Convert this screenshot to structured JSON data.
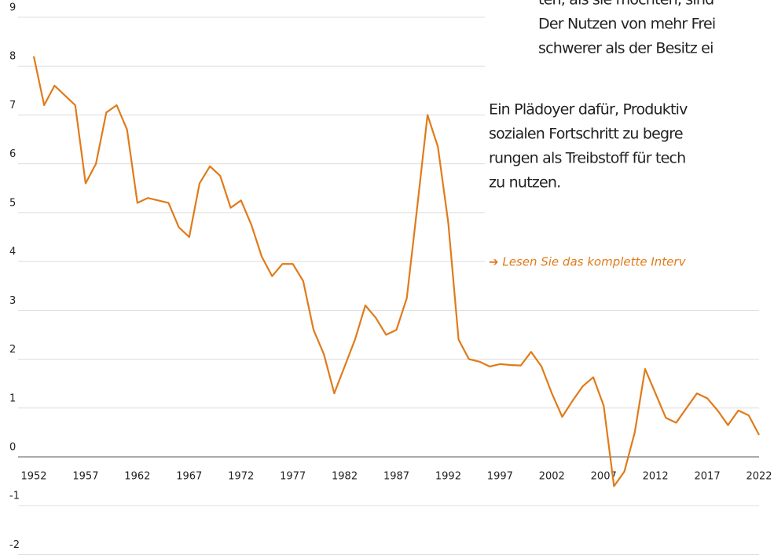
{
  "chart_data": {
    "type": "line",
    "x": [
      1952,
      1953,
      1954,
      1955,
      1956,
      1957,
      1958,
      1959,
      1960,
      1961,
      1962,
      1963,
      1964,
      1965,
      1966,
      1967,
      1968,
      1969,
      1970,
      1971,
      1972,
      1973,
      1974,
      1975,
      1976,
      1977,
      1978,
      1979,
      1980,
      1981,
      1982,
      1983,
      1984,
      1985,
      1986,
      1987,
      1988,
      1989,
      1990,
      1991,
      1992,
      1993,
      1994,
      1995,
      1996,
      1997,
      1998,
      1999,
      2000,
      2001,
      2002,
      2003,
      2004,
      2005,
      2006,
      2007,
      2008,
      2009,
      2010,
      2011,
      2012,
      2013,
      2014,
      2015,
      2016,
      2017,
      2018,
      2019,
      2020,
      2021,
      2022
    ],
    "values": [
      8.2,
      7.2,
      7.6,
      7.4,
      7.2,
      5.6,
      6.0,
      7.05,
      7.2,
      6.7,
      5.2,
      5.3,
      5.25,
      5.2,
      4.7,
      4.5,
      5.6,
      5.95,
      5.75,
      5.1,
      5.25,
      4.75,
      4.1,
      3.7,
      3.95,
      3.95,
      3.6,
      2.6,
      2.1,
      1.3,
      1.85,
      2.4,
      3.1,
      2.85,
      2.5,
      2.6,
      3.25,
      5.1,
      7.0,
      6.35,
      4.8,
      2.4,
      2.0,
      1.95,
      1.85,
      1.9,
      1.88,
      1.87,
      2.15,
      1.85,
      1.3,
      0.82,
      1.15,
      1.45,
      1.63,
      1.05,
      -0.6,
      -0.3,
      0.5,
      1.8,
      1.3,
      0.8,
      0.7,
      1.0,
      1.3,
      1.2,
      0.95,
      0.65,
      0.95,
      0.85,
      0.45
    ],
    "color": "#e07b1a",
    "xlim": [
      1952,
      2022
    ],
    "xticks": [
      1952,
      1957,
      1962,
      1967,
      1972,
      1977,
      1982,
      1987,
      1992,
      1997,
      2002,
      2007,
      2012,
      2017,
      2022
    ],
    "ylim": [
      -2,
      9
    ],
    "yticks": [
      -2,
      -1,
      0,
      1,
      2,
      3,
      4,
      5,
      6,
      7,
      8,
      9
    ],
    "grid": true
  },
  "sidebar": {
    "quote": [
      "ten, als sie möchten, sind",
      "Der Nutzen von mehr Frei",
      "schwerer als der Besitz ei"
    ],
    "paragraph": [
      "Ein Plädoyer dafür, Produktiv",
      "sozialen Fortschritt zu begre",
      "rungen als Treibstoff für tech",
      "zu nutzen."
    ],
    "link": "➔ Lesen Sie das komplette Interv"
  }
}
